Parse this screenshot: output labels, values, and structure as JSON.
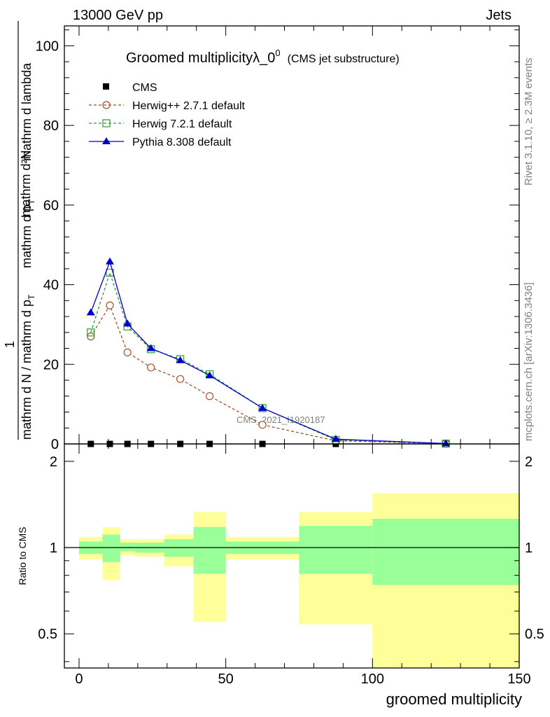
{
  "header": {
    "energy_label": "13000 GeV pp",
    "category_label": "Jets"
  },
  "side_labels": {
    "rivet": "Rivet 3.1.10, ≥ 2.3M events",
    "source": "mcplots.cern.ch [arXiv:1306.3436]"
  },
  "watermark": "CMS_2021_I1920187",
  "chart_data": [
    {
      "type": "line",
      "title": "Groomed multiplicityλ_0",
      "title_superscript": "0",
      "subtitle": "(CMS jet substructure)",
      "xlabel": "groomed multiplicity",
      "ylabel": {
        "numerator": "1",
        "denominator": "mathrm d N / mathrm d p",
        "denominator_sub": "T",
        "denominator_tail": "mathrm d p",
        "denominator_tail_sub": "T",
        "denominator_end": "mathrm d lambda",
        "dn_label": "mathrm d²N"
      },
      "xlim": [
        -5,
        150
      ],
      "ylim": [
        0,
        105
      ],
      "x_ticks": [
        0,
        50,
        100,
        150
      ],
      "y_ticks": [
        0,
        20,
        40,
        60,
        80,
        100
      ],
      "legend_position": "top-left",
      "x": [
        4,
        10.5,
        16.5,
        24.5,
        34.5,
        44.5,
        62.5,
        87.5,
        125
      ],
      "series": [
        {
          "name": "CMS",
          "color": "#000000",
          "marker": "filled-square",
          "values": [
            0,
            0,
            0,
            0,
            0,
            0,
            0,
            0,
            0
          ]
        },
        {
          "name": "Herwig++ 2.7.1 default",
          "color": "#a0522d",
          "marker": "open-circle",
          "dashed": true,
          "values": [
            27,
            34.8,
            23,
            19.2,
            16.3,
            12,
            4.8,
            0.8,
            0.05
          ]
        },
        {
          "name": "Herwig 7.2.1 default",
          "color": "#339933",
          "marker": "open-square",
          "dashed": true,
          "values": [
            28,
            43,
            29.5,
            23.8,
            21.3,
            17.5,
            9,
            1,
            0.08
          ]
        },
        {
          "name": "Pythia 8.308 default",
          "color": "#0000cc",
          "marker": "filled-triangle",
          "dashed": false,
          "values": [
            33,
            45.8,
            30.2,
            24,
            21,
            17.2,
            9,
            1.2,
            0.1
          ]
        }
      ]
    },
    {
      "type": "area",
      "ylabel": "Ratio to CMS",
      "xlim": [
        -5,
        150
      ],
      "ylim": [
        0.38,
        2.3
      ],
      "y_ticks": [
        0.5,
        1,
        2
      ],
      "y_tick_labels": [
        "0.5",
        "1",
        "2"
      ],
      "x_ticks": [
        0,
        50,
        100,
        150
      ],
      "reference_line": 1,
      "bins": [
        {
          "lo": 0,
          "hi": 8,
          "stat_lo": 0.95,
          "stat_hi": 1.05,
          "tot_lo": 0.91,
          "tot_hi": 1.09
        },
        {
          "lo": 8,
          "hi": 14,
          "stat_lo": 0.89,
          "stat_hi": 1.11,
          "tot_lo": 0.77,
          "tot_hi": 1.18
        },
        {
          "lo": 14,
          "hi": 19,
          "stat_lo": 0.97,
          "stat_hi": 1.04,
          "tot_lo": 0.94,
          "tot_hi": 1.07
        },
        {
          "lo": 19,
          "hi": 29,
          "stat_lo": 0.96,
          "stat_hi": 1.04,
          "tot_lo": 0.93,
          "tot_hi": 1.07
        },
        {
          "lo": 29,
          "hi": 39,
          "stat_lo": 0.93,
          "stat_hi": 1.07,
          "tot_lo": 0.86,
          "tot_hi": 1.11
        },
        {
          "lo": 39,
          "hi": 50,
          "stat_lo": 0.81,
          "stat_hi": 1.18,
          "tot_lo": 0.55,
          "tot_hi": 1.33
        },
        {
          "lo": 50,
          "hi": 75,
          "stat_lo": 0.95,
          "stat_hi": 1.05,
          "tot_lo": 0.91,
          "tot_hi": 1.09
        },
        {
          "lo": 75,
          "hi": 100,
          "stat_lo": 0.81,
          "stat_hi": 1.19,
          "tot_lo": 0.54,
          "tot_hi": 1.33
        },
        {
          "lo": 100,
          "hi": 150,
          "stat_lo": 0.74,
          "stat_hi": 1.26,
          "tot_lo": 0.38,
          "tot_hi": 1.55
        }
      ]
    }
  ]
}
